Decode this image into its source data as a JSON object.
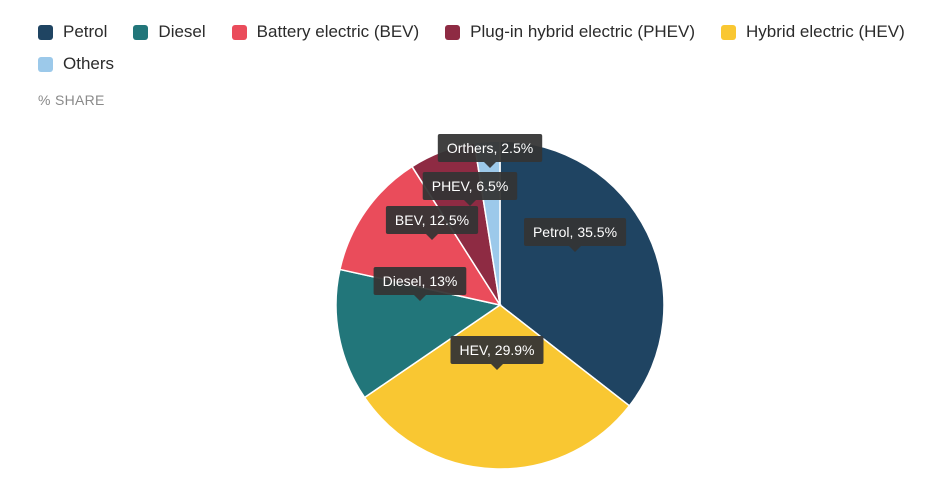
{
  "chart_data": {
    "type": "pie",
    "subtitle": "% SHARE",
    "legend": [
      {
        "label": "Petrol",
        "color": "#1f4462"
      },
      {
        "label": "Diesel",
        "color": "#22767a"
      },
      {
        "label": "Battery electric (BEV)",
        "color": "#ea4c5b"
      },
      {
        "label": "Plug-in hybrid electric (PHEV)",
        "color": "#8e2b43"
      },
      {
        "label": "Hybrid electric (HEV)",
        "color": "#f9c732"
      },
      {
        "label": "Others",
        "color": "#9cc9ea"
      }
    ],
    "slices": [
      {
        "name": "Petrol",
        "value": 35.5,
        "label": "Petrol, 35.5%",
        "color": "#1f4462"
      },
      {
        "name": "HEV",
        "value": 29.9,
        "label": "HEV, 29.9%",
        "color": "#f9c732"
      },
      {
        "name": "Diesel",
        "value": 13,
        "label": "Diesel, 13%",
        "color": "#22767a"
      },
      {
        "name": "BEV",
        "value": 12.5,
        "label": "BEV, 12.5%",
        "color": "#ea4c5b"
      },
      {
        "name": "PHEV",
        "value": 6.5,
        "label": "PHEV, 6.5%",
        "color": "#8e2b43"
      },
      {
        "name": "Others",
        "value": 2.5,
        "label": "Orthers, 2.5%",
        "color": "#9cc9ea"
      }
    ]
  }
}
